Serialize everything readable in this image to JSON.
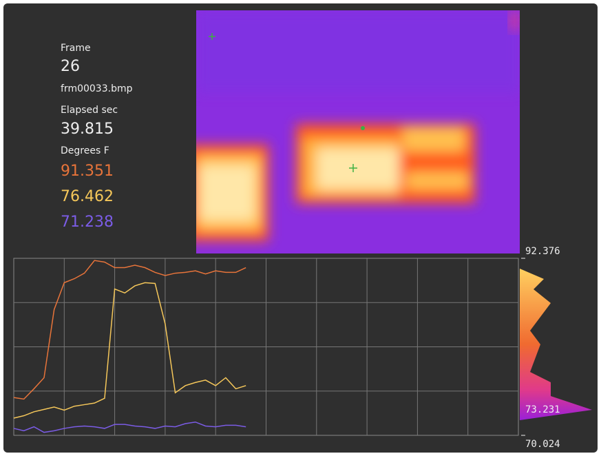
{
  "info": {
    "frame_label": "Frame",
    "frame": "26",
    "file": "frm00033.bmp",
    "elapsed_label": "Elapsed sec",
    "elapsed": "39.815",
    "degrees_label": "Degrees F",
    "readings": [
      "91.351",
      "76.462",
      "71.238"
    ]
  },
  "chart_data": {
    "type": "line",
    "x": [
      0,
      2,
      4,
      6,
      8,
      10,
      12,
      14,
      16,
      18,
      20,
      22,
      24,
      26,
      28,
      30,
      32,
      34,
      36,
      38,
      40,
      42,
      44,
      46
    ],
    "xlim": [
      0,
      100
    ],
    "ylim": [
      70.024,
      92.376
    ],
    "yticks": [
      92.376,
      70.024
    ],
    "grid": true,
    "marker_value": 73.231,
    "series": [
      {
        "color": "#e8743a",
        "values": [
          74.8,
          74.6,
          75.9,
          77.3,
          85.9,
          89.3,
          89.8,
          90.5,
          92.1,
          91.9,
          91.2,
          91.2,
          91.5,
          91.2,
          90.6,
          90.2,
          90.5,
          90.6,
          90.8,
          90.4,
          90.8,
          90.6,
          90.6,
          91.2
        ]
      },
      {
        "color": "#f5c75a",
        "values": [
          72.2,
          72.5,
          73.0,
          73.3,
          73.6,
          73.2,
          73.7,
          73.9,
          74.1,
          74.7,
          88.5,
          88.0,
          88.9,
          89.3,
          89.2,
          84.1,
          75.4,
          76.3,
          76.7,
          77.0,
          76.3,
          77.3,
          75.9,
          76.3
        ]
      },
      {
        "color": "#7b5ce6",
        "values": [
          70.9,
          70.6,
          71.1,
          70.4,
          70.6,
          70.9,
          71.1,
          71.2,
          71.1,
          70.9,
          71.4,
          71.4,
          71.2,
          71.1,
          70.9,
          71.2,
          71.1,
          71.5,
          71.7,
          71.2,
          71.1,
          71.3,
          71.3,
          71.1
        ]
      }
    ]
  }
}
